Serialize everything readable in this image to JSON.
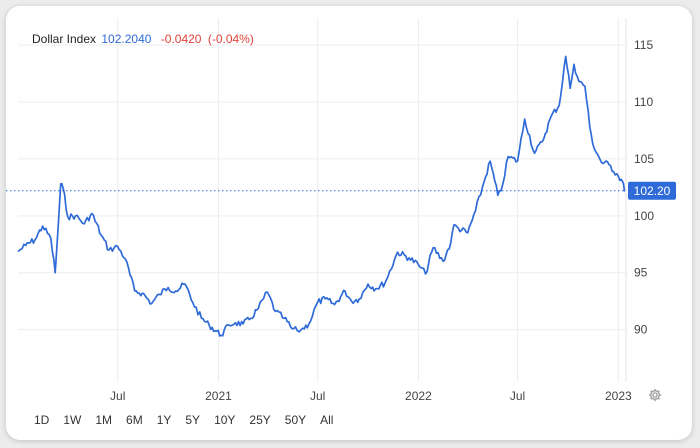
{
  "header": {
    "name": "Dollar Index",
    "price": "102.2040",
    "change": "-0.0420",
    "change_pct": "(-0.04%)"
  },
  "ranges": [
    "1D",
    "1W",
    "1M",
    "6M",
    "1Y",
    "5Y",
    "10Y",
    "25Y",
    "50Y",
    "All"
  ],
  "icons": {
    "settings": "gear-icon"
  },
  "colors": {
    "line": "#2f6bd8",
    "change": "#e0433a",
    "label_bg": "#2f6bd8"
  },
  "chart_data": {
    "type": "line",
    "series": [
      {
        "name": "Dollar Index",
        "x": [
          "2020-01-02",
          "2020-01-15",
          "2020-02-01",
          "2020-02-15",
          "2020-03-01",
          "2020-03-09",
          "2020-03-14",
          "2020-03-19",
          "2020-03-23",
          "2020-04-01",
          "2020-04-15",
          "2020-05-01",
          "2020-05-15",
          "2020-06-01",
          "2020-06-15",
          "2020-07-01",
          "2020-07-15",
          "2020-08-01",
          "2020-08-15",
          "2020-09-01",
          "2020-09-15",
          "2020-10-01",
          "2020-10-15",
          "2020-11-01",
          "2020-11-15",
          "2020-12-01",
          "2020-12-15",
          "2021-01-06",
          "2021-01-20",
          "2021-02-01",
          "2021-02-15",
          "2021-03-01",
          "2021-03-15",
          "2021-03-31",
          "2021-04-15",
          "2021-05-01",
          "2021-05-15",
          "2021-05-25",
          "2021-06-01",
          "2021-06-15",
          "2021-07-01",
          "2021-07-15",
          "2021-08-01",
          "2021-08-20",
          "2021-09-01",
          "2021-09-15",
          "2021-10-01",
          "2021-10-15",
          "2021-11-01",
          "2021-11-24",
          "2021-12-15",
          "2022-01-01",
          "2022-01-14",
          "2022-01-28",
          "2022-02-15",
          "2022-03-01",
          "2022-03-07",
          "2022-03-15",
          "2022-04-01",
          "2022-04-15",
          "2022-05-01",
          "2022-05-12",
          "2022-05-26",
          "2022-06-01",
          "2022-06-14",
          "2022-07-01",
          "2022-07-14",
          "2022-08-01",
          "2022-08-15",
          "2022-09-01",
          "2022-09-15",
          "2022-09-27",
          "2022-10-05",
          "2022-10-12",
          "2022-10-21",
          "2022-11-01",
          "2022-11-10",
          "2022-11-15",
          "2022-12-01",
          "2022-12-15",
          "2023-01-01",
          "2023-01-09",
          "2023-01-12"
        ],
        "values": [
          96.9,
          97.4,
          97.9,
          99.1,
          98.0,
          95.0,
          98.8,
          102.8,
          102.5,
          99.9,
          100.0,
          99.3,
          100.2,
          98.3,
          97.0,
          97.3,
          96.2,
          93.4,
          93.2,
          92.3,
          93.1,
          93.7,
          93.4,
          94.0,
          92.4,
          91.0,
          90.4,
          89.5,
          90.4,
          90.6,
          90.5,
          91.0,
          91.9,
          93.3,
          91.6,
          91.0,
          90.1,
          89.9,
          90.0,
          90.5,
          92.4,
          92.7,
          92.2,
          93.4,
          92.5,
          92.7,
          94.0,
          93.6,
          94.1,
          96.8,
          96.3,
          95.7,
          94.9,
          97.2,
          96.0,
          97.6,
          99.2,
          98.9,
          98.5,
          100.4,
          103.0,
          104.8,
          101.8,
          102.2,
          105.2,
          104.8,
          108.5,
          105.5,
          106.5,
          108.8,
          109.7,
          114.0,
          111.2,
          113.3,
          111.8,
          111.4,
          107.8,
          106.4,
          104.7,
          104.5,
          103.5,
          103.0,
          102.2
        ]
      }
    ],
    "xlim": [
      "2020-01-01",
      "2023-01-15"
    ],
    "ylim": [
      85.4,
      116.5
    ],
    "x_ticks": [
      {
        "date": "2020-07-01",
        "label": "Jul"
      },
      {
        "date": "2021-01-01",
        "label": "2021"
      },
      {
        "date": "2021-07-01",
        "label": "Jul"
      },
      {
        "date": "2022-01-01",
        "label": "2022"
      },
      {
        "date": "2022-07-01",
        "label": "Jul"
      },
      {
        "date": "2023-01-01",
        "label": "2023"
      }
    ],
    "y_ticks": [
      90,
      95,
      100,
      105,
      110,
      115
    ],
    "last_value_line": 102.2,
    "last_value_label": "102.20",
    "grid": true,
    "y_axis_side": "right"
  }
}
